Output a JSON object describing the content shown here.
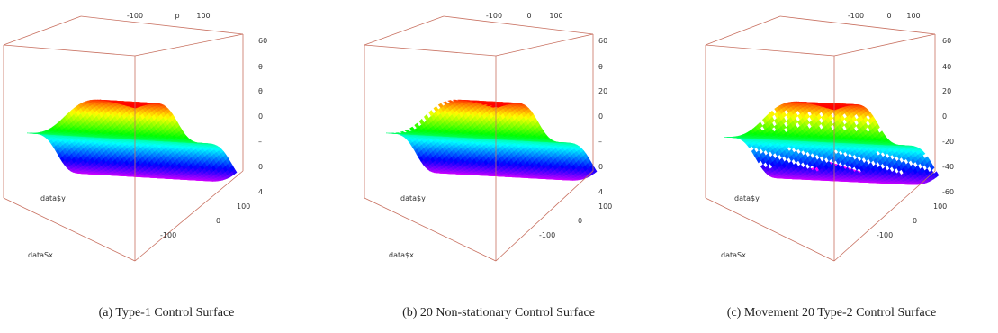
{
  "figure": {
    "panels": [
      {
        "caption": "(a) Type-1 Control Surface",
        "xlabel": "dataSx",
        "ylabel": "data$y",
        "top_ticks": [
          "-100",
          "p",
          "100"
        ],
        "right_ticks": [
          "60",
          "θ",
          "θ",
          "0",
          "–",
          "0",
          "4"
        ],
        "y_ticks": [
          "100",
          "0",
          "-100"
        ]
      },
      {
        "caption": "(b) 20 Non-stationary Control Surface",
        "xlabel": "data$x",
        "ylabel": "data$y",
        "top_ticks": [
          "-100",
          "0",
          "100"
        ],
        "right_ticks": [
          "60",
          "θ",
          "20",
          "0",
          "–",
          "0",
          "4"
        ],
        "y_ticks": [
          "100",
          "0",
          "-100"
        ]
      },
      {
        "caption": "(c) Movement 20 Type-2 Control Surface",
        "xlabel": "dataSx",
        "ylabel": "data$y",
        "top_ticks": [
          "-100",
          "0",
          "100"
        ],
        "right_ticks": [
          "60",
          "40",
          "20",
          "0",
          "-20",
          "-40",
          "-60"
        ],
        "y_ticks": [
          "100",
          "0",
          "-100"
        ]
      }
    ]
  },
  "chart_data": [
    {
      "type": "surface",
      "title": "(a) Type-1 Control Surface",
      "xlabel": "dataSx",
      "ylabel": "data$y",
      "x_ticks": [
        -100,
        0,
        100
      ],
      "y_ticks": [
        -100,
        0,
        100
      ],
      "z_range": [
        -60,
        60
      ],
      "colormap": "rainbow (red at high z to magenta at low z)",
      "surface_shape": "stepped sigmoid surface",
      "box": true
    },
    {
      "type": "surface",
      "title": "(b) 20 Non-stationary Control Surface",
      "xlabel": "data$x",
      "ylabel": "data$y",
      "x_ticks": [
        -100,
        0,
        100
      ],
      "y_ticks": [
        -100,
        0,
        100
      ],
      "z_range": [
        -60,
        60
      ],
      "colormap": "rainbow (red at high z to magenta at low z)",
      "surface_shape": "stepped sigmoid surface with jagged edges",
      "box": true
    },
    {
      "type": "surface",
      "title": "(c) Movement 20 Type-2 Control Surface",
      "xlabel": "dataSx",
      "ylabel": "data$y",
      "x_ticks": [
        -100,
        0,
        100
      ],
      "y_ticks": [
        -100,
        0,
        100
      ],
      "z_ticks": [
        60,
        40,
        20,
        0,
        -20,
        -40,
        -60
      ],
      "z_range": [
        -60,
        60
      ],
      "colormap": "rainbow (red at high z to magenta at low z)",
      "surface_shape": "stepped sigmoid surface with gaps",
      "box": true
    }
  ]
}
